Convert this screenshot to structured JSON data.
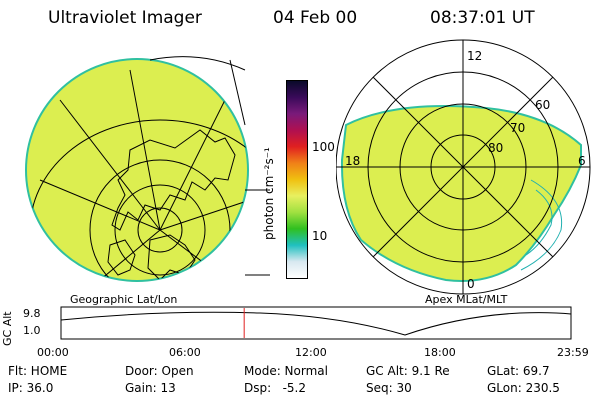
{
  "header": {
    "title": "Ultraviolet Imager",
    "date": "04 Feb 00",
    "time": "08:37:01 UT"
  },
  "colorbar": {
    "unit_label": "photon cm⁻²s⁻¹",
    "ticks": [
      "100",
      "10"
    ],
    "colors": [
      "#0a0a2a",
      "#3a0a5a",
      "#7a1a7a",
      "#b01050",
      "#e02020",
      "#f08018",
      "#f0c010",
      "#e8f060",
      "#a0e040",
      "#30c020",
      "#20c0c0",
      "#d8e8f0",
      "#ffffff"
    ]
  },
  "left_panel": {
    "caption": "Geographic Lat/Lon",
    "fill_color": "#dcee50"
  },
  "right_panel": {
    "caption": "Apex MLat/MLT",
    "mlt_labels": [
      "12",
      "18",
      "6",
      "0"
    ],
    "lat_labels": [
      "60",
      "70",
      "80"
    ],
    "fill_color": "#dcee50"
  },
  "altitude_plot": {
    "ylabel": "GC Alt",
    "y_ticks": [
      "9.8",
      "1.0"
    ],
    "x_ticks": [
      "00:00",
      "06:00",
      "12:00",
      "18:00",
      "23:59"
    ],
    "marker_color": "#e02020",
    "marker_time_hours": 8.62
  },
  "status": {
    "flt": "Flt: HOME",
    "door": "Door: Open",
    "mode": "Mode: Normal",
    "gc_alt": "GC Alt: 9.1 Re",
    "glat": "GLat:  69.7",
    "ip": "IP: 36.0",
    "gain": "Gain: 13",
    "dsp": "Dsp:   -5.2",
    "seq": "Seq: 30",
    "glon": "GLon: 230.5"
  }
}
